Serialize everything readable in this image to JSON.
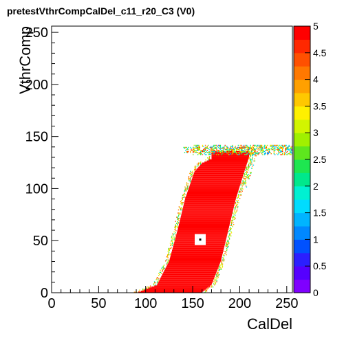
{
  "chart_data": {
    "type": "heatmap",
    "title": "pretestVthrCompCalDel_c11_r20_C3 (V0)",
    "xlabel": "CalDel",
    "ylabel": "VthrComp",
    "xlim": [
      0,
      256
    ],
    "ylim": [
      0,
      256
    ],
    "x_ticks": [
      "0",
      "50",
      "100",
      "150",
      "200",
      "250"
    ],
    "y_ticks": [
      "0",
      "50",
      "100",
      "150",
      "200",
      "250"
    ],
    "z_range": [
      0,
      5
    ],
    "z_ticks": [
      "0",
      "0.5",
      "1",
      "1.5",
      "2",
      "2.5",
      "3",
      "3.5",
      "4",
      "4.5",
      "5"
    ],
    "palette": [
      "#7f00ff",
      "#5500ff",
      "#2b1fff",
      "#0051ff",
      "#0088ff",
      "#00b4ff",
      "#00dcff",
      "#00f0d2",
      "#00e88c",
      "#1ee650",
      "#5ee61e",
      "#a0f000",
      "#d2f500",
      "#fff000",
      "#ffc800",
      "#ffa000",
      "#ff7800",
      "#ff5000",
      "#ff2800",
      "#ff0000"
    ],
    "region": {
      "description_free": true,
      "fill_value": 5,
      "lower_edge_y": [
        0,
        7,
        30,
        60,
        90,
        116,
        124,
        128
      ],
      "lower_edge_x": [
        92,
        112,
        125,
        134,
        142,
        152,
        160,
        170
      ],
      "upper_edge_y": [
        0,
        7,
        30,
        60,
        90,
        116,
        130
      ],
      "upper_edge_x": [
        160,
        170,
        180,
        188,
        196,
        205,
        210
      ],
      "top_y": 136,
      "plateau_x": [
        150,
        256
      ],
      "plateau_y": [
        132,
        142
      ]
    },
    "marker": {
      "x": 158,
      "y": 51
    }
  }
}
